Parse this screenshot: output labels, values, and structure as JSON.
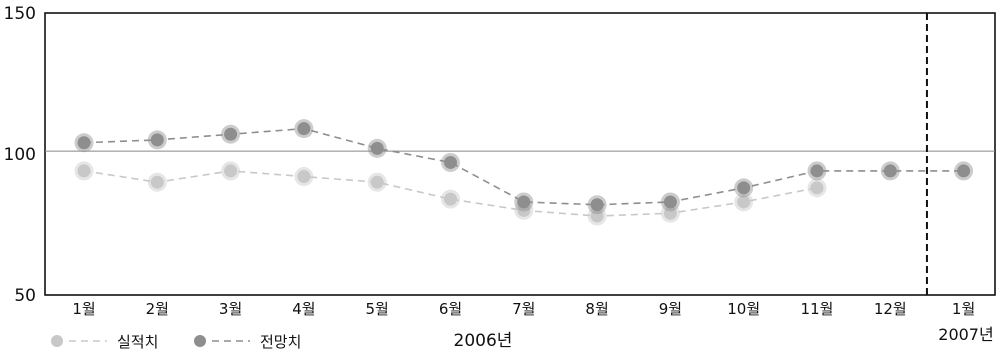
{
  "chart_data": {
    "type": "line",
    "categories": [
      "1월",
      "2월",
      "3월",
      "4월",
      "5월",
      "6월",
      "7월",
      "8월",
      "9월",
      "10월",
      "11월",
      "12월",
      "1월"
    ],
    "year_labels": {
      "first": "2006년",
      "second": "2007년"
    },
    "ylim": [
      50,
      150
    ],
    "yticks": [
      50,
      100,
      150
    ],
    "reference_line": 101,
    "divider_after_index": 11,
    "grid": false,
    "legend_position": "bottom-left",
    "series": [
      {
        "name": "실적치",
        "color": "#c8c8c8",
        "values": [
          94,
          90,
          94,
          92,
          90,
          84,
          80,
          78,
          79,
          83,
          88,
          null,
          null
        ]
      },
      {
        "name": "전망치",
        "color": "#8e8e8e",
        "values": [
          104,
          105,
          107,
          109,
          102,
          97,
          83,
          82,
          83,
          88,
          94,
          94,
          94
        ]
      }
    ]
  }
}
